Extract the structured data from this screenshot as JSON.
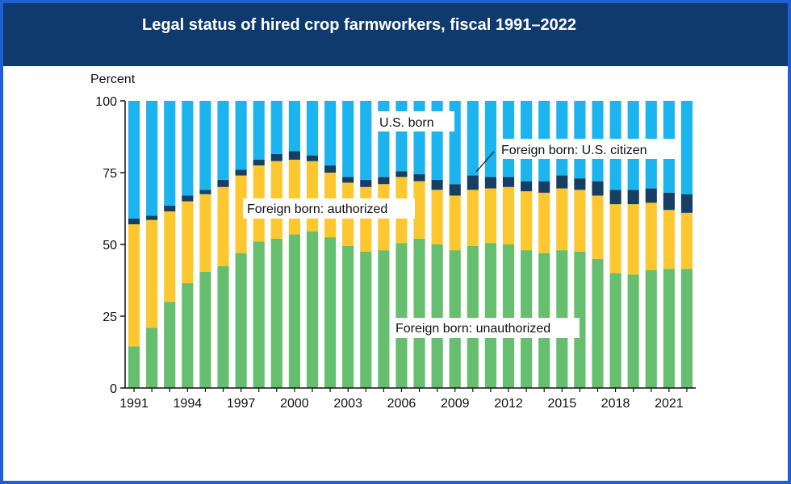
{
  "title": "Legal status of hired crop farmworkers, fiscal 1991–2022",
  "colors": {
    "frame": "#1f5fd6",
    "title_bar": "#0e3a6e",
    "unauthorized": "#66bf6e",
    "authorized": "#fdc82f",
    "citizen": "#173f63",
    "us_born": "#1cb4ee"
  },
  "chart_data": {
    "type": "bar",
    "stacked": true,
    "ylabel": "Percent",
    "ylim": [
      0,
      100
    ],
    "yticks": [
      0,
      25,
      50,
      75,
      100
    ],
    "x_tick_labels": [
      "1991",
      "1994",
      "1997",
      "2000",
      "2003",
      "2006",
      "2009",
      "2012",
      "2015",
      "2018",
      "2021"
    ],
    "categories": [
      "1991",
      "1992",
      "1993",
      "1994",
      "1995",
      "1996",
      "1997",
      "1998",
      "1999",
      "2000",
      "2001",
      "2002",
      "2003",
      "2004",
      "2005",
      "2006",
      "2007",
      "2008",
      "2009",
      "2010",
      "2011",
      "2012",
      "2013",
      "2014",
      "2015",
      "2016",
      "2017",
      "2018",
      "2019",
      "2020",
      "2021",
      "2022"
    ],
    "series": [
      {
        "name": "Foreign born: unauthorized",
        "values": [
          14.5,
          21,
          30,
          36.5,
          40.5,
          42.5,
          47,
          51,
          52,
          53.5,
          54.5,
          52.5,
          49.5,
          47.5,
          48,
          50.5,
          52,
          50,
          48,
          49.5,
          50.5,
          50,
          48,
          47,
          48,
          47.5,
          45,
          40,
          39.5,
          41,
          41.5,
          41.5
        ]
      },
      {
        "name": "Foreign born: authorized",
        "values": [
          42.5,
          37.5,
          31.5,
          28.5,
          27,
          27.5,
          27,
          26.5,
          27,
          26,
          24.5,
          22.5,
          22,
          22.5,
          23,
          23,
          20,
          19,
          19,
          19.5,
          19,
          20,
          20.5,
          21,
          21.5,
          21.5,
          22,
          24,
          24.5,
          23.5,
          20.5,
          19.5
        ]
      },
      {
        "name": "Foreign born: U.S. citizen",
        "values": [
          2,
          1.5,
          2,
          2,
          1.5,
          2.5,
          2,
          2,
          2.5,
          3,
          2,
          2.5,
          2,
          2.5,
          2.5,
          2,
          2.5,
          3.5,
          4,
          5,
          4,
          3.5,
          3.5,
          4,
          4.5,
          4,
          5,
          5,
          5,
          5,
          6,
          6.5
        ]
      },
      {
        "name": "U.S. born",
        "values": [
          41,
          40,
          36.5,
          33,
          31,
          27.5,
          24,
          20.5,
          18.5,
          17.5,
          19,
          22.5,
          26.5,
          27.5,
          26.5,
          24.5,
          25.5,
          27.5,
          29,
          26,
          26.5,
          26.5,
          28,
          28,
          26,
          27,
          28,
          31,
          31,
          30.5,
          32,
          32.5
        ]
      }
    ],
    "annotations": {
      "us_born": "U.S. born",
      "citizen": "Foreign born: U.S. citizen",
      "authorized": "Foreign born: authorized",
      "unauthorized": "Foreign born: unauthorized"
    }
  }
}
